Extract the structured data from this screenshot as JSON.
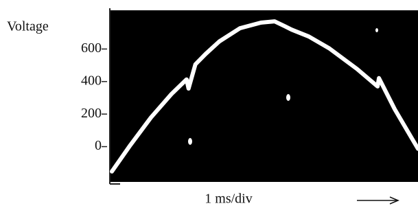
{
  "chart_data": {
    "type": "line",
    "y_label": "Voltage",
    "x_label": "1 ms/div",
    "x": [
      0.06,
      0.6,
      1.2,
      1.8,
      2.24,
      2.3,
      2.5,
      2.8,
      3.2,
      3.8,
      4.41,
      4.81,
      5.11,
      5.31,
      5.81,
      6.41,
      7.22,
      7.82,
      7.86,
      8.32,
      8.82,
      9.0
    ],
    "values": [
      -153,
      9,
      179,
      323,
      413,
      357,
      506,
      570,
      647,
      728,
      762,
      770,
      740,
      719,
      677,
      604,
      477,
      370,
      421,
      230,
      51,
      -13
    ],
    "color": "#ffffff",
    "xlim": [
      0,
      9
    ],
    "ylim": [
      -217,
      838
    ],
    "yticks": [
      0,
      200,
      400,
      600
    ]
  }
}
